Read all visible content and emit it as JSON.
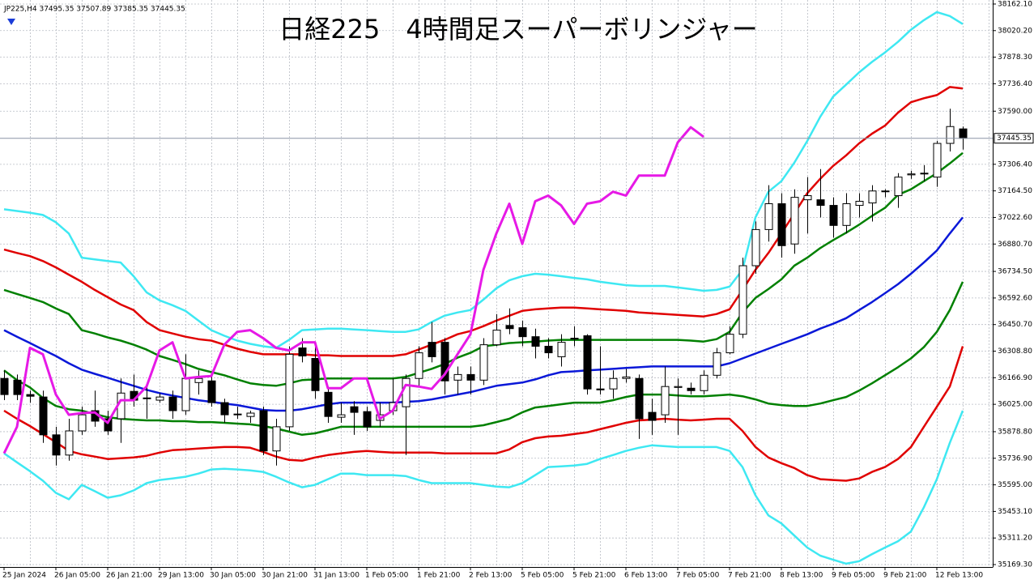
{
  "chart_data": {
    "type": "candlestick",
    "title": "日経225　4時間足スーパーボリンジャー",
    "subtitle": "JP225,H4  37495.35 37507.89 37385.35 37445.35",
    "categories": [
      "25 Jan 2024",
      null,
      null,
      null,
      "26 Jan 05:00",
      null,
      null,
      null,
      "26 Jan 21:00",
      null,
      null,
      null,
      "29 Jan 13:00",
      null,
      null,
      null,
      "30 Jan 05:00",
      null,
      null,
      null,
      "30 Jan 21:00",
      null,
      null,
      null,
      "31 Jan 13:00",
      null,
      null,
      null,
      "1 Feb 05:00",
      null,
      null,
      null,
      "1 Feb 21:00",
      null,
      null,
      null,
      "2 Feb 13:00",
      null,
      null,
      null,
      "5 Feb 05:00",
      null,
      null,
      null,
      "5 Feb 21:00",
      null,
      null,
      null,
      "6 Feb 13:00",
      null,
      null,
      null,
      "7 Feb 05:00",
      null,
      null,
      null,
      "7 Feb 21:00",
      null,
      null,
      null,
      "8 Feb 13:00",
      null,
      null,
      null,
      "9 Feb 05:00",
      null,
      null,
      null,
      "9 Feb 21:00",
      null,
      null,
      null,
      "12 Feb 13:00",
      null,
      null
    ],
    "open": [
      36163,
      36154,
      36077,
      36064,
      35862,
      35754,
      35883,
      35991,
      35948,
      35948,
      36094,
      36055,
      36047,
      36064,
      35991,
      36141,
      36150,
      36034,
      35969,
      35960,
      35991,
      35776,
      35905,
      36326,
      36270,
      36089,
      35956,
      36012,
      35986,
      35939,
      35991,
      36012,
      36163,
      36356,
      36356,
      36154,
      36184,
      36154,
      36343,
      36446,
      36434,
      36386,
      36335,
      36279,
      36378,
      36391,
      36107,
      36107,
      36163,
      36163,
      35982,
      35969,
      36115,
      36111,
      36098,
      36180,
      36300,
      36399,
      36765,
      36958,
      37096,
      36881,
      37117,
      37117,
      37087,
      36980,
      37087,
      37100,
      37160,
      37139,
      37250,
      37255,
      37238,
      37418,
      37495.35
    ],
    "high": [
      36206,
      36184,
      36098,
      36098,
      35905,
      35948,
      36012,
      36098,
      35991,
      36163,
      36184,
      36120,
      36085,
      36098,
      36292,
      36206,
      36184,
      36055,
      36012,
      35991,
      36012,
      35948,
      36335,
      36378,
      36356,
      36120,
      36034,
      36042,
      36012,
      36034,
      36163,
      36184,
      36335,
      36464,
      36378,
      36227,
      36227,
      36378,
      36507,
      36537,
      36472,
      36429,
      36378,
      36399,
      36442,
      36399,
      36335,
      36206,
      36214,
      36184,
      36055,
      36227,
      36163,
      36141,
      36206,
      36326,
      36442,
      36808,
      37001,
      37195,
      37152,
      37173,
      37238,
      37281,
      37130,
      37152,
      37152,
      37195,
      37173,
      37259,
      37272,
      37302,
      37431,
      37603,
      37507.89
    ],
    "low": [
      36047,
      36047,
      36034,
      35819,
      35698,
      35724,
      35862,
      35905,
      35862,
      35819,
      36012,
      35948,
      36034,
      35948,
      35969,
      36077,
      36012,
      35926,
      35948,
      35926,
      35754,
      35698,
      35883,
      36249,
      36055,
      35926,
      35926,
      35862,
      35883,
      35905,
      35969,
      35754,
      36120,
      36249,
      36077,
      36077,
      36077,
      36128,
      36335,
      36399,
      36335,
      36270,
      36270,
      36227,
      36335,
      36077,
      36077,
      36055,
      36141,
      35840,
      35862,
      35926,
      35862,
      36077,
      36077,
      36163,
      36292,
      36378,
      36722,
      36894,
      36808,
      36829,
      36937,
      37023,
      36915,
      36937,
      37023,
      37001,
      37130,
      37074,
      37229,
      37216,
      37186,
      37375,
      37385.35
    ],
    "close": [
      36077,
      36077,
      36068,
      35862,
      35754,
      35883,
      35969,
      35935,
      35883,
      36085,
      36047,
      36059,
      36064,
      35991,
      36163,
      36163,
      36034,
      35969,
      35973,
      35978,
      35776,
      35905,
      36292,
      36283,
      36098,
      35960,
      35969,
      35982,
      35905,
      35969,
      36034,
      36163,
      36300,
      36279,
      36150,
      36184,
      36154,
      36343,
      36421,
      36429,
      36386,
      36335,
      36300,
      36356,
      36373,
      36107,
      36102,
      36163,
      36171,
      35948,
      35939,
      36120,
      36120,
      36098,
      36180,
      36300,
      36399,
      36765,
      36958,
      37096,
      36872,
      37130,
      37139,
      37087,
      36980,
      37096,
      37109,
      37164,
      37164,
      37238,
      37255,
      37259,
      37418,
      37508,
      37445.35
    ],
    "up_color": "#ffffff",
    "down_color": "#000000",
    "series": [
      {
        "color": "#3ee8f2",
        "values": [
          37066,
          37057,
          37048,
          37036,
          36997,
          36937,
          36808,
          36799,
          36790,
          36782,
          36709,
          36623,
          36580,
          36554,
          36524,
          36472,
          36421,
          36391,
          36365,
          36348,
          36335,
          36326,
          36369,
          36421,
          36425,
          36429,
          36429,
          36425,
          36421,
          36416,
          36412,
          36412,
          36425,
          36464,
          36498,
          36515,
          36528,
          36584,
          36644,
          36687,
          36709,
          36722,
          36717,
          36709,
          36700,
          36692,
          36679,
          36670,
          36661,
          36657,
          36657,
          36657,
          36649,
          36640,
          36631,
          36636,
          36653,
          36743,
          37023,
          37160,
          37216,
          37315,
          37431,
          37560,
          37668,
          37732,
          37797,
          37853,
          37904,
          37960,
          38025,
          38076,
          38119,
          38098,
          38055
        ]
      },
      {
        "color": "#e00000",
        "values": [
          36851,
          36833,
          36816,
          36790,
          36756,
          36717,
          36679,
          36636,
          36597,
          36558,
          36528,
          36464,
          36421,
          36403,
          36386,
          36373,
          36365,
          36343,
          36322,
          36305,
          36292,
          36292,
          36292,
          36292,
          36287,
          36287,
          36283,
          36283,
          36283,
          36283,
          36283,
          36292,
          36317,
          36343,
          36369,
          36399,
          36416,
          36442,
          36472,
          36498,
          36524,
          36532,
          36537,
          36541,
          36541,
          36537,
          36532,
          36528,
          36524,
          36515,
          36511,
          36507,
          36502,
          36498,
          36494,
          36507,
          36532,
          36636,
          36743,
          36833,
          36937,
          37044,
          37152,
          37229,
          37298,
          37354,
          37418,
          37470,
          37513,
          37582,
          37638,
          37659,
          37676,
          37719,
          37711
        ]
      },
      {
        "color": "#008000",
        "values": [
          36636,
          36614,
          36593,
          36571,
          36537,
          36507,
          36421,
          36403,
          36382,
          36365,
          36343,
          36317,
          36283,
          36262,
          36240,
          36214,
          36197,
          36180,
          36158,
          36137,
          36128,
          36124,
          36137,
          36154,
          36158,
          36163,
          36163,
          36163,
          36163,
          36163,
          36163,
          36171,
          36193,
          36214,
          36240,
          36274,
          36300,
          36335,
          36343,
          36352,
          36356,
          36360,
          36365,
          36369,
          36369,
          36369,
          36369,
          36369,
          36369,
          36369,
          36369,
          36369,
          36369,
          36365,
          36360,
          36373,
          36412,
          36515,
          36593,
          36640,
          36692,
          36765,
          36808,
          36859,
          36902,
          36941,
          36984,
          37031,
          37074,
          37143,
          37173,
          37216,
          37259,
          37311,
          37367
        ]
      },
      {
        "color": "#0a18d8",
        "values": [
          36421,
          36386,
          36352,
          36317,
          36283,
          36244,
          36210,
          36188,
          36167,
          36145,
          36124,
          36102,
          36085,
          36072,
          36059,
          36047,
          36038,
          36029,
          36021,
          36008,
          35995,
          35991,
          35991,
          35999,
          36012,
          36025,
          36034,
          36034,
          36034,
          36034,
          36034,
          36038,
          36042,
          36051,
          36064,
          36077,
          36090,
          36107,
          36124,
          36133,
          36141,
          36158,
          36180,
          36197,
          36201,
          36206,
          36210,
          36214,
          36219,
          36223,
          36227,
          36227,
          36227,
          36227,
          36227,
          36227,
          36244,
          36270,
          36296,
          36322,
          36348,
          36373,
          36399,
          36429,
          36455,
          36485,
          36528,
          36571,
          36618,
          36666,
          36722,
          36782,
          36846,
          36937,
          37023
        ]
      },
      {
        "color": "#008000",
        "values": [
          36206,
          36154,
          36115,
          36059,
          36016,
          35999,
          35991,
          35973,
          35956,
          35948,
          35943,
          35939,
          35939,
          35935,
          35935,
          35930,
          35930,
          35926,
          35922,
          35918,
          35909,
          35896,
          35879,
          35862,
          35870,
          35887,
          35905,
          35905,
          35905,
          35905,
          35905,
          35905,
          35905,
          35905,
          35905,
          35905,
          35905,
          35913,
          35930,
          35948,
          35982,
          36008,
          36016,
          36025,
          36034,
          36034,
          36034,
          36047,
          36064,
          36077,
          36077,
          36077,
          36072,
          36068,
          36068,
          36072,
          36077,
          36068,
          36051,
          36029,
          36021,
          36016,
          36016,
          36029,
          36047,
          36064,
          36098,
          36137,
          36180,
          36223,
          36270,
          36330,
          36412,
          36528,
          36679
        ]
      },
      {
        "color": "#e00000",
        "values": [
          35991,
          35948,
          35909,
          35866,
          35823,
          35776,
          35758,
          35746,
          35733,
          35737,
          35741,
          35750,
          35767,
          35780,
          35784,
          35789,
          35793,
          35797,
          35797,
          35793,
          35771,
          35746,
          35728,
          35724,
          35741,
          35754,
          35763,
          35771,
          35776,
          35771,
          35767,
          35767,
          35767,
          35767,
          35763,
          35763,
          35763,
          35763,
          35763,
          35784,
          35823,
          35844,
          35853,
          35857,
          35866,
          35875,
          35892,
          35909,
          35926,
          35939,
          35943,
          35948,
          35943,
          35939,
          35943,
          35948,
          35948,
          35883,
          35797,
          35741,
          35711,
          35685,
          35647,
          35625,
          35621,
          35617,
          35629,
          35664,
          35690,
          35733,
          35797,
          35905,
          36012,
          36120,
          36335
        ]
      },
      {
        "color": "#3ee8f2",
        "values": [
          35763,
          35715,
          35668,
          35617,
          35552,
          35518,
          35595,
          35561,
          35526,
          35539,
          35565,
          35604,
          35621,
          35629,
          35638,
          35655,
          35677,
          35681,
          35677,
          35672,
          35664,
          35638,
          35608,
          35582,
          35595,
          35625,
          35655,
          35655,
          35647,
          35647,
          35647,
          35642,
          35621,
          35604,
          35604,
          35604,
          35604,
          35595,
          35586,
          35582,
          35604,
          35647,
          35690,
          35694,
          35698,
          35707,
          35733,
          35754,
          35776,
          35793,
          35806,
          35801,
          35797,
          35797,
          35797,
          35797,
          35776,
          35690,
          35539,
          35432,
          35389,
          35324,
          35260,
          35217,
          35195,
          35174,
          35187,
          35225,
          35260,
          35294,
          35346,
          35475,
          35625,
          35819,
          35991
        ]
      },
      {
        "color": "#e619e6",
        "values": [
          35763,
          35905,
          36326,
          36292,
          36077,
          35969,
          35978,
          35982,
          35926,
          36047,
          36047,
          36120,
          36313,
          36356,
          36163,
          36171,
          36176,
          36343,
          36412,
          36421,
          36378,
          36326,
          36313,
          36356,
          36356,
          36111,
          36111,
          36163,
          36163,
          35948,
          35991,
          36128,
          36120,
          36107,
          36184,
          36292,
          36399,
          36743,
          36937,
          37096,
          36881,
          37109,
          37139,
          37087,
          36988,
          37096,
          37109,
          37160,
          37139,
          37246,
          37246,
          37246,
          37423,
          37504,
          37453,
          null,
          null,
          null,
          null,
          null,
          null,
          null,
          null,
          null,
          null,
          null,
          null,
          null,
          null,
          null,
          null,
          null,
          null,
          null,
          null
        ]
      }
    ],
    "current_price": 37445.35,
    "ylim": [
      35156.4,
      38183.6
    ],
    "yticks": [
      {
        "value": 38162.1,
        "label": "38162.10"
      },
      {
        "value": 38020.2,
        "label": "38020.20"
      },
      {
        "value": 37878.3,
        "label": "37878.30"
      },
      {
        "value": 37736.4,
        "label": "37736.40"
      },
      {
        "value": 37590,
        "label": "37590.00"
      },
      {
        "value": 37306.4,
        "label": "37306.40"
      },
      {
        "value": 37164.5,
        "label": "37164.50"
      },
      {
        "value": 37022.6,
        "label": "37022.60"
      },
      {
        "value": 36880.7,
        "label": "36880.70"
      },
      {
        "value": 36734.5,
        "label": "36734.50"
      },
      {
        "value": 36592.6,
        "label": "36592.60"
      },
      {
        "value": 36450.7,
        "label": "36450.70"
      },
      {
        "value": 36308.8,
        "label": "36308.80"
      },
      {
        "value": 36166.9,
        "label": "36166.90"
      },
      {
        "value": 36025,
        "label": "36025.00"
      },
      {
        "value": 35878.8,
        "label": "35878.80"
      },
      {
        "value": 35736.9,
        "label": "35736.90"
      },
      {
        "value": 35595,
        "label": "35595.00"
      },
      {
        "value": 35453.1,
        "label": "35453.10"
      },
      {
        "value": 35311.2,
        "label": "35311.20"
      },
      {
        "value": 35169.3,
        "label": "35169.30"
      }
    ],
    "grid": true
  }
}
